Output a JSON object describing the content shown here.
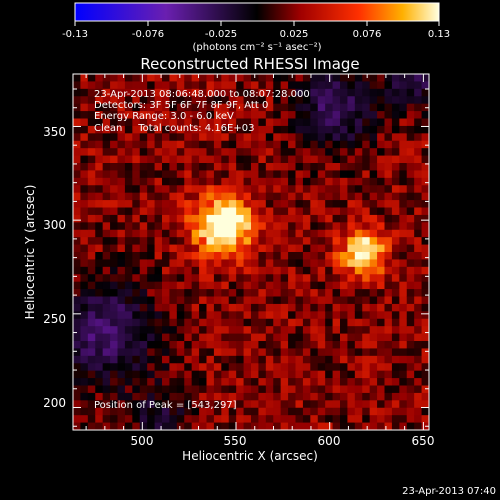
{
  "chart_data": {
    "type": "heatmap",
    "title": "Reconstructed RHESSI Image",
    "xlabel": "Heliocentric X (arcsec)",
    "ylabel": "Heliocentric Y (arcsec)",
    "xlim": [
      463,
      653
    ],
    "ylim": [
      188,
      378
    ],
    "x_ticks": [
      500,
      550,
      600,
      650
    ],
    "y_ticks": [
      200,
      250,
      300,
      350
    ],
    "colorbar": {
      "min": -0.13,
      "max": 0.13,
      "tick_labels": [
        "-0.13",
        "-0.076",
        "-0.025",
        "0.025",
        "0.076",
        "0.13"
      ],
      "unit_label": "(photons cm⁻² s⁻¹ asec⁻²)"
    },
    "annotations": {
      "time_range": "23-Apr-2013 08:06:48.000 to 08:07:28.000",
      "detectors": "Detectors: 3F 5F 6F 7F 8F 9F, Att 0",
      "energy": "Energy Range: 3.0 - 6.0 keV",
      "clean": "Clean     Total counts: 4.16E+03",
      "peak": "Position of Peak = [543,297]"
    },
    "sources": [
      {
        "x": 543,
        "y": 297,
        "peak": 0.13,
        "sigma": 11
      },
      {
        "x": 618,
        "y": 283,
        "peak": 0.095,
        "sigma": 9
      }
    ],
    "negative_regions": [
      {
        "x": 480,
        "y": 240,
        "depth": -0.06,
        "sigma": 18
      },
      {
        "x": 603,
        "y": 360,
        "depth": -0.05,
        "sigma": 15
      },
      {
        "x": 645,
        "y": 375,
        "depth": -0.04,
        "sigma": 10
      },
      {
        "x": 510,
        "y": 195,
        "depth": -0.02,
        "sigma": 12
      }
    ],
    "footer_timestamp": "23-Apr-2013 07:40"
  }
}
